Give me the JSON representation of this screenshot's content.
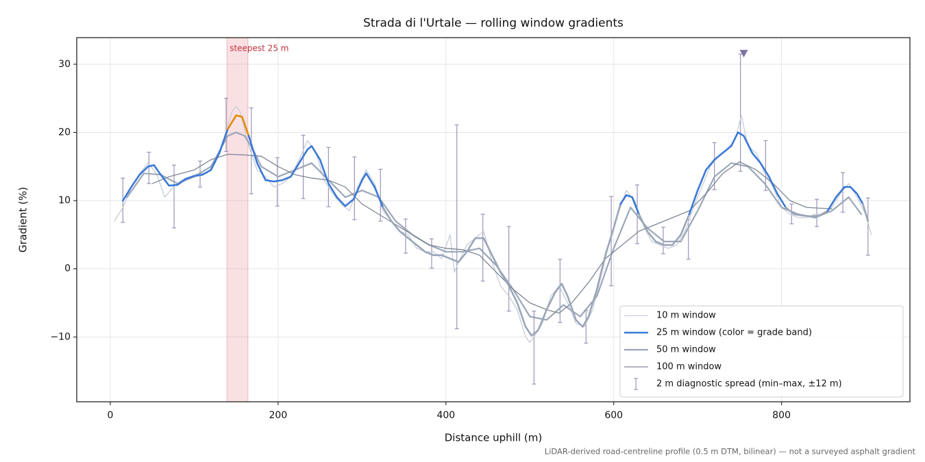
{
  "chart_data": {
    "type": "line",
    "title": "Strada di l'Urtale — rolling window gradients",
    "x_label": "Distance uphill (m)",
    "y_label": "Gradient (%)",
    "footnote": "LiDAR-derived road-centreline profile (0.5 m DTM, bilinear) — not a surveyed asphalt gradient",
    "xlim": [
      -40,
      953
    ],
    "ylim": [
      -19.5,
      33.9
    ],
    "xticks": [
      0,
      200,
      400,
      600,
      800
    ],
    "yticks": [
      {
        "value": -10,
        "label": "−10"
      },
      0,
      10,
      20,
      30
    ],
    "grid": true,
    "legend": "lower right",
    "highlight": {
      "label": "steepest 25 m",
      "x": [
        139,
        164
      ],
      "color": "#e8a0a8"
    },
    "series": [
      {
        "name": "10 m window",
        "color": "#c6ccd6",
        "width": 1.3,
        "x": [
          5,
          15,
          25,
          35,
          45,
          55,
          65,
          75,
          85,
          95,
          105,
          115,
          125,
          135,
          145,
          150,
          155,
          165,
          175,
          185,
          195,
          205,
          215,
          225,
          235,
          245,
          255,
          265,
          275,
          285,
          295,
          305,
          315,
          325,
          335,
          345,
          355,
          365,
          375,
          385,
          395,
          405,
          410,
          415,
          425,
          435,
          445,
          455,
          465,
          475,
          485,
          495,
          500,
          505,
          515,
          525,
          535,
          545,
          555,
          565,
          575,
          585,
          595,
          605,
          615,
          625,
          635,
          645,
          655,
          665,
          675,
          685,
          695,
          705,
          715,
          725,
          735,
          745,
          752,
          760,
          770,
          780,
          790,
          800,
          810,
          820,
          830,
          840,
          850,
          860,
          870,
          880,
          890,
          900,
          907
        ],
        "values": [
          7,
          9,
          12,
          14,
          15.5,
          14,
          10.5,
          12,
          13,
          13.5,
          14,
          14,
          15.5,
          19,
          23,
          23.8,
          23,
          18,
          14.5,
          13.5,
          12,
          12.5,
          13.5,
          16,
          18.8,
          17,
          13,
          11,
          9.5,
          8.5,
          12,
          14.5,
          12.5,
          8.5,
          7,
          5.5,
          5,
          3,
          2.5,
          2.5,
          1.5,
          5,
          -0.5,
          1,
          3.5,
          4.5,
          5.5,
          1,
          -2.5,
          -4,
          -6,
          -10,
          -10.8,
          -10,
          -8,
          -4,
          -2.5,
          -5,
          -8,
          -8.5,
          -6,
          -1,
          4,
          8,
          11.5,
          10,
          6.5,
          4,
          3.5,
          3,
          3.5,
          5.5,
          9,
          12,
          15,
          16.5,
          17.5,
          19,
          22.5,
          18,
          17,
          14,
          12,
          9,
          8,
          7.5,
          7.5,
          8,
          8,
          9,
          11,
          12.5,
          10.5,
          8,
          5
        ]
      },
      {
        "name": "25 m window (color = grade band)",
        "color": "#3a78d6",
        "width": 2.6,
        "bands": [
          {
            "min": 20,
            "color": "#e08a00"
          },
          {
            "min": 9,
            "color": "#3a78d6"
          }
        ],
        "below_color": "#9aa6b8",
        "x": [
          15,
          25,
          35,
          45,
          52,
          60,
          70,
          80,
          90,
          100,
          110,
          120,
          130,
          140,
          150,
          157,
          165,
          175,
          185,
          195,
          205,
          215,
          225,
          235,
          240,
          250,
          260,
          270,
          280,
          290,
          300,
          305,
          315,
          325,
          335,
          345,
          355,
          365,
          375,
          385,
          395,
          405,
          415,
          425,
          435,
          445,
          455,
          465,
          475,
          485,
          495,
          502,
          510,
          520,
          530,
          538,
          545,
          555,
          563,
          570,
          580,
          590,
          600,
          608,
          615,
          622,
          630,
          640,
          650,
          660,
          670,
          680,
          690,
          700,
          710,
          720,
          730,
          740,
          748,
          755,
          765,
          775,
          785,
          795,
          805,
          815,
          825,
          835,
          845,
          855,
          865,
          875,
          882,
          890,
          897,
          903
        ],
        "values": [
          10,
          12,
          13.8,
          15,
          15.2,
          13.8,
          12.2,
          12.3,
          13.2,
          13.6,
          13.8,
          14.5,
          17,
          20.5,
          22.5,
          22.3,
          19.5,
          15.5,
          13,
          12.8,
          13,
          13.5,
          15.5,
          17.5,
          18,
          16,
          12.5,
          10.5,
          9.2,
          10.2,
          13,
          14,
          12,
          9,
          7,
          5.5,
          4.5,
          3.5,
          2.5,
          2,
          2,
          1.5,
          1,
          2.5,
          4.5,
          4.5,
          2,
          -0.5,
          -2.5,
          -5,
          -8.5,
          -9.8,
          -9,
          -6,
          -3.5,
          -2.2,
          -4,
          -7.5,
          -8.5,
          -7,
          -3,
          2,
          6,
          9.5,
          10.8,
          10.5,
          8,
          5.5,
          4,
          3.5,
          3.5,
          5,
          8,
          11.5,
          14.5,
          16,
          17,
          18,
          20,
          19.5,
          17,
          15.5,
          13.5,
          11,
          9,
          8,
          7.8,
          7.7,
          7.8,
          8.5,
          10.5,
          12,
          12,
          11,
          9.5,
          7
        ]
      },
      {
        "name": "50 m window",
        "color": "#9aa6b8",
        "width": 2.2,
        "x": [
          20,
          40,
          60,
          80,
          100,
          120,
          140,
          150,
          160,
          170,
          180,
          200,
          220,
          240,
          260,
          280,
          300,
          320,
          340,
          360,
          380,
          400,
          420,
          440,
          460,
          480,
          500,
          520,
          540,
          560,
          580,
          600,
          620,
          640,
          660,
          680,
          700,
          720,
          740,
          760,
          780,
          800,
          820,
          840,
          860,
          880,
          895
        ],
        "values": [
          10.5,
          14,
          13.8,
          12.5,
          13.5,
          15,
          19.5,
          20,
          19.5,
          17.5,
          15,
          13.5,
          14.5,
          15.5,
          13,
          10.5,
          11.5,
          10.5,
          7,
          5,
          3.5,
          2.5,
          2.5,
          3,
          0.5,
          -3,
          -7,
          -7.5,
          -5.3,
          -7,
          -4,
          3,
          9,
          6,
          4,
          4,
          8.5,
          13.5,
          15.5,
          15,
          12.5,
          9,
          8,
          7.5,
          8.5,
          10.5,
          8
        ]
      },
      {
        "name": "100 m window",
        "color": "#7d8594",
        "width": 1.3,
        "x": [
          50,
          70,
          100,
          120,
          140,
          160,
          180,
          200,
          220,
          240,
          260,
          280,
          300,
          320,
          340,
          360,
          380,
          400,
          420,
          440,
          460,
          480,
          500,
          520,
          535,
          550,
          570,
          590,
          610,
          630,
          650,
          670,
          690,
          710,
          730,
          750,
          770,
          790,
          810,
          830,
          860
        ],
        "values": [
          12.5,
          13.5,
          14.5,
          16,
          16.8,
          16.7,
          16.5,
          15,
          13.8,
          13.3,
          13,
          12,
          9.5,
          8,
          6.5,
          5,
          3.5,
          3,
          2.8,
          2,
          -0.5,
          -3,
          -5,
          -6,
          -6.5,
          -5,
          -2,
          1.5,
          3.5,
          5.5,
          6.5,
          7.5,
          8.5,
          11,
          14,
          15.7,
          14.5,
          12.5,
          10,
          9,
          8.8
        ]
      }
    ],
    "spread": {
      "name": "2 m diagnostic spread (min–max, ±12 m)",
      "color": "#9c93b8",
      "x": [
        15,
        46,
        76,
        107,
        138,
        168,
        199,
        230,
        260,
        291,
        322,
        352,
        383,
        413,
        444,
        475,
        505,
        536,
        567,
        597,
        628,
        659,
        689,
        720,
        751,
        781,
        812,
        842,
        873,
        903
      ],
      "low": [
        6.8,
        12.5,
        6,
        12,
        17.2,
        11,
        9.2,
        10.3,
        9.1,
        7.2,
        7,
        2.3,
        0.1,
        -8.8,
        -1.8,
        -6.2,
        -16.9,
        -7.9,
        -10.9,
        -2.5,
        3.7,
        2.2,
        1.4,
        11.6,
        14.3,
        11.5,
        6.6,
        6.2,
        8.3,
        2
      ],
      "high": [
        13.3,
        17.1,
        15.2,
        15.8,
        25,
        23.6,
        16.3,
        19.6,
        17.8,
        16.4,
        14.6,
        7.3,
        4.4,
        21.1,
        8,
        6.2,
        -6.2,
        1.4,
        -6.1,
        10.6,
        12.3,
        6.1,
        7.2,
        18.5,
        31.5,
        18.8,
        9.5,
        10.2,
        14.1,
        10.4
      ]
    },
    "peak_marker": {
      "x": 755,
      "y": 31.6,
      "color": "#7f739f"
    }
  }
}
